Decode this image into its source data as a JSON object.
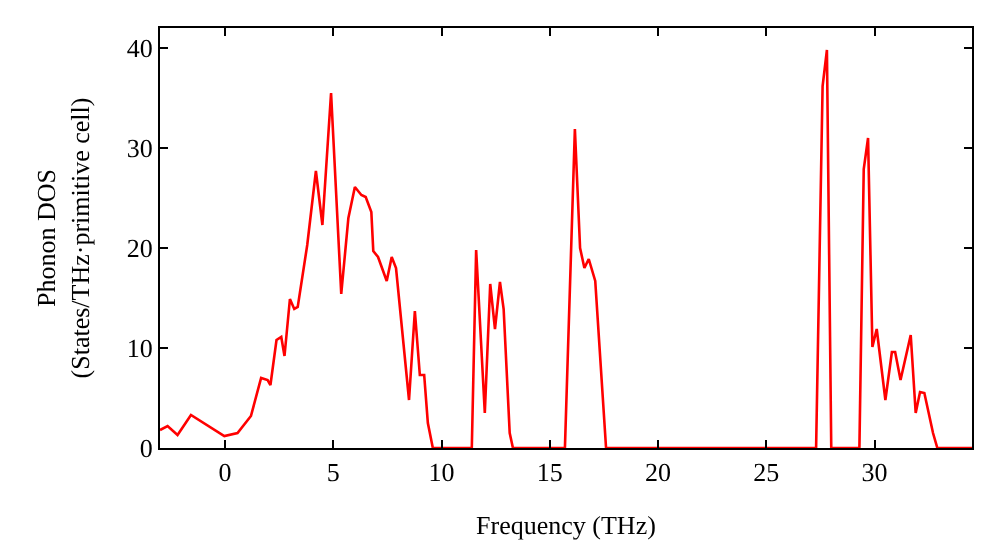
{
  "chart_data": {
    "type": "line",
    "xlabel": "Frequency (THz)",
    "ylabel": "Phonon DOS\n(States/THz·primitive cell)",
    "xlim": [
      -3,
      34.5
    ],
    "ylim": [
      0,
      42
    ],
    "xticks": [
      0,
      5,
      10,
      15,
      20,
      25,
      30
    ],
    "yticks": [
      0,
      10,
      20,
      30,
      40
    ],
    "series": [
      {
        "color": "#ff0000",
        "x": [
          -3,
          -2.65,
          -2.19,
          -1.57,
          -0.03,
          0.58,
          1.2,
          1.67,
          1.97,
          2.1,
          2.38,
          2.6,
          2.75,
          3.0,
          3.2,
          3.36,
          3.8,
          4.2,
          4.5,
          4.9,
          5.37,
          5.7,
          6.0,
          6.3,
          6.5,
          6.76,
          6.85,
          7.07,
          7.47,
          7.7,
          7.9,
          8.5,
          8.77,
          9.0,
          9.2,
          9.37,
          9.6,
          11.4,
          11.6,
          12.0,
          12.25,
          12.47,
          12.7,
          12.87,
          13.15,
          13.3,
          15.7,
          16.16,
          16.4,
          16.6,
          16.8,
          17.1,
          17.6,
          27.3,
          27.6,
          27.8,
          28.0,
          29.3,
          29.5,
          29.7,
          29.9,
          30.1,
          30.5,
          30.8,
          30.95,
          31.2,
          31.67,
          31.9,
          32.1,
          32.3,
          32.7,
          32.9,
          34.5
        ],
        "values": [
          1.8,
          2.2,
          1.3,
          3.3,
          1.2,
          1.5,
          3.2,
          7.0,
          6.8,
          6.3,
          10.8,
          11.1,
          9.2,
          14.9,
          13.9,
          14.1,
          20.3,
          27.7,
          22.3,
          35.5,
          15.4,
          23,
          26.1,
          25.3,
          25.1,
          23.6,
          19.7,
          19.1,
          16.7,
          19.1,
          18.0,
          4.8,
          13.7,
          7.3,
          7.3,
          2.5,
          0,
          0,
          19.8,
          3.5,
          16.4,
          11.9,
          16.6,
          13.9,
          1.5,
          0,
          0,
          31.9,
          20,
          18.0,
          18.9,
          16.7,
          0,
          0,
          36.2,
          39.8,
          0,
          0,
          27.9,
          31.0,
          10.1,
          11.9,
          4.8,
          9.6,
          9.6,
          6.8,
          11.3,
          3.5,
          5.6,
          5.5,
          1.5,
          0,
          0
        ]
      }
    ]
  }
}
